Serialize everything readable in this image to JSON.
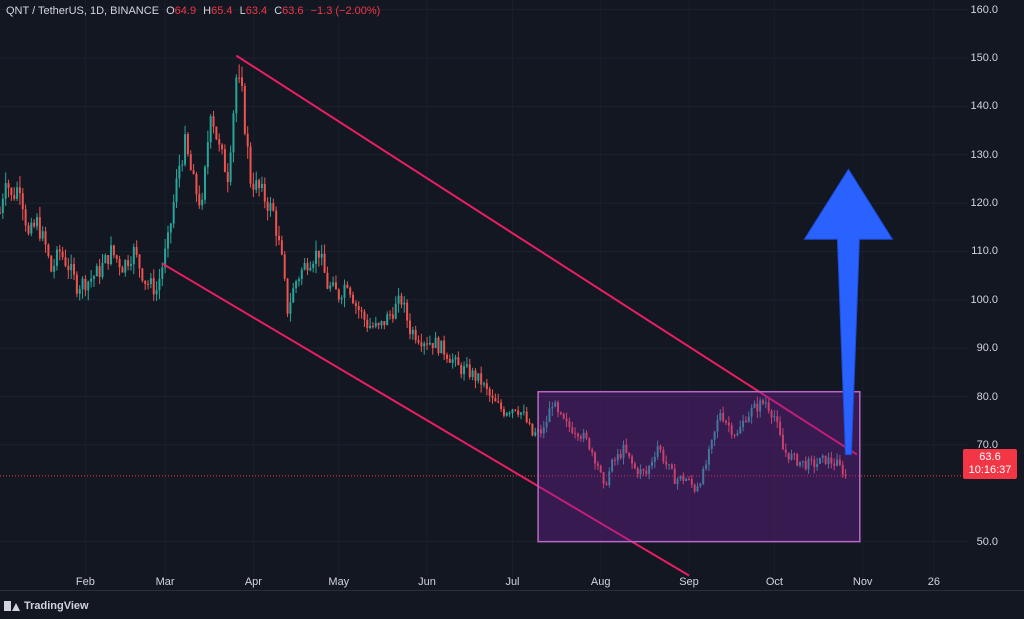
{
  "header": {
    "symbol": "QNT / TetherUS, 1D, BINANCE",
    "open_label": "O",
    "open": "64.9",
    "high_label": "H",
    "high": "65.4",
    "low_label": "L",
    "low": "63.4",
    "close_label": "C",
    "close": "63.6",
    "change": "−1.3 (−2.00%)"
  },
  "price_tag": {
    "price": "63.6",
    "countdown": "10:16:37"
  },
  "brand": "TradingView",
  "colors": {
    "background": "#131722",
    "up": "#26a69a",
    "down": "#ef5350",
    "channel": "#e91e63",
    "box_stroke": "#ba68c8",
    "box_fill": "#7b1fa2",
    "arrow": "#2962ff",
    "price_tag": "#f23645"
  },
  "chart_data": {
    "type": "candlestick",
    "symbol": "QNT/USDT",
    "interval": "1D",
    "y_ticks": [
      160.0,
      150.0,
      140.0,
      130.0,
      120.0,
      110.0,
      100.0,
      90.0,
      80.0,
      70.0,
      50.0
    ],
    "y_tick_labels": [
      "160.0",
      "150.0",
      "140.0",
      "130.0",
      "120.0",
      "110.0",
      "100.0",
      "90.0",
      "80.0",
      "70.0",
      "50.0"
    ],
    "ylim": [
      40,
      162
    ],
    "x_ticks": [
      "Feb",
      "Mar",
      "Apr",
      "May",
      "Jun",
      "Jul",
      "Aug",
      "Sep",
      "Oct",
      "Nov",
      "26"
    ],
    "x_tick_values": [
      "2022-02-01",
      "2022-03-01",
      "2022-04-01",
      "2022-05-01",
      "2022-06-01",
      "2022-07-01",
      "2022-08-01",
      "2022-09-01",
      "2022-10-01",
      "2022-11-01",
      "2022-11-26"
    ],
    "xlim": [
      "2022-01-02",
      "2022-12-08"
    ],
    "close_path": [
      [
        "2022-01-02",
        118
      ],
      [
        "2022-01-04",
        126
      ],
      [
        "2022-01-06",
        121
      ],
      [
        "2022-01-09",
        124
      ],
      [
        "2022-01-12",
        113
      ],
      [
        "2022-01-15",
        116
      ],
      [
        "2022-01-18",
        111
      ],
      [
        "2022-01-20",
        106
      ],
      [
        "2022-01-23",
        110
      ],
      [
        "2022-01-26",
        107
      ],
      [
        "2022-01-29",
        103
      ],
      [
        "2022-02-02",
        104
      ],
      [
        "2022-02-06",
        106
      ],
      [
        "2022-02-10",
        110
      ],
      [
        "2022-02-14",
        107
      ],
      [
        "2022-02-18",
        110
      ],
      [
        "2022-02-22",
        104
      ],
      [
        "2022-02-26",
        102
      ],
      [
        "2022-03-02",
        112
      ],
      [
        "2022-03-06",
        128
      ],
      [
        "2022-03-08",
        132
      ],
      [
        "2022-03-11",
        124
      ],
      [
        "2022-03-14",
        119
      ],
      [
        "2022-03-17",
        140
      ],
      [
        "2022-03-20",
        131
      ],
      [
        "2022-03-23",
        126
      ],
      [
        "2022-03-26",
        146
      ],
      [
        "2022-03-28",
        142
      ],
      [
        "2022-03-31",
        125
      ],
      [
        "2022-04-04",
        122
      ],
      [
        "2022-04-08",
        118
      ],
      [
        "2022-04-11",
        108
      ],
      [
        "2022-04-13",
        98
      ],
      [
        "2022-04-16",
        104
      ],
      [
        "2022-04-20",
        108
      ],
      [
        "2022-04-24",
        110
      ],
      [
        "2022-04-27",
        103
      ],
      [
        "2022-05-01",
        101
      ],
      [
        "2022-05-04",
        104
      ],
      [
        "2022-05-07",
        99
      ],
      [
        "2022-05-11",
        95
      ],
      [
        "2022-05-15",
        94
      ],
      [
        "2022-05-19",
        97
      ],
      [
        "2022-05-23",
        100
      ],
      [
        "2022-05-26",
        94
      ],
      [
        "2022-05-30",
        92
      ],
      [
        "2022-06-04",
        91
      ],
      [
        "2022-06-08",
        89
      ],
      [
        "2022-06-12",
        86
      ],
      [
        "2022-06-16",
        85
      ],
      [
        "2022-06-20",
        83
      ],
      [
        "2022-06-24",
        79
      ],
      [
        "2022-06-28",
        77
      ],
      [
        "2022-07-02",
        78
      ],
      [
        "2022-07-05",
        76
      ],
      [
        "2022-07-08",
        72
      ],
      [
        "2022-07-12",
        73
      ],
      [
        "2022-07-15",
        79
      ],
      [
        "2022-07-17",
        76
      ],
      [
        "2022-07-20",
        74
      ],
      [
        "2022-07-24",
        73
      ],
      [
        "2022-07-28",
        70
      ],
      [
        "2022-07-31",
        66
      ],
      [
        "2022-08-02",
        61
      ],
      [
        "2022-08-05",
        66
      ],
      [
        "2022-08-09",
        69
      ],
      [
        "2022-08-13",
        65
      ],
      [
        "2022-08-17",
        64
      ],
      [
        "2022-08-21",
        70
      ],
      [
        "2022-08-24",
        66
      ],
      [
        "2022-08-27",
        63
      ],
      [
        "2022-08-31",
        63
      ],
      [
        "2022-09-03",
        61
      ],
      [
        "2022-09-06",
        64
      ],
      [
        "2022-09-09",
        70
      ],
      [
        "2022-09-12",
        77
      ],
      [
        "2022-09-15",
        74
      ],
      [
        "2022-09-18",
        72
      ],
      [
        "2022-09-21",
        76
      ],
      [
        "2022-09-25",
        78
      ],
      [
        "2022-09-28",
        79
      ],
      [
        "2022-10-01",
        76
      ],
      [
        "2022-10-04",
        69
      ],
      [
        "2022-10-08",
        67
      ],
      [
        "2022-10-12",
        66
      ],
      [
        "2022-10-15",
        66
      ],
      [
        "2022-10-19",
        67
      ],
      [
        "2022-10-23",
        66
      ],
      [
        "2022-10-26",
        64
      ]
    ],
    "last_price": 63.6,
    "drawings": {
      "channel_upper": [
        [
          "2022-03-26",
          150.5
        ],
        [
          "2022-10-30",
          68
        ]
      ],
      "channel_lower": [
        [
          "2022-02-28",
          107.5
        ],
        [
          "2022-09-01",
          43
        ]
      ],
      "range_box": {
        "start": "2022-07-10",
        "end": "2022-10-31",
        "top": 81,
        "bottom": 50
      },
      "arrow": {
        "date": "2022-10-27",
        "from": 68,
        "to": 127,
        "direction": "up"
      }
    }
  }
}
